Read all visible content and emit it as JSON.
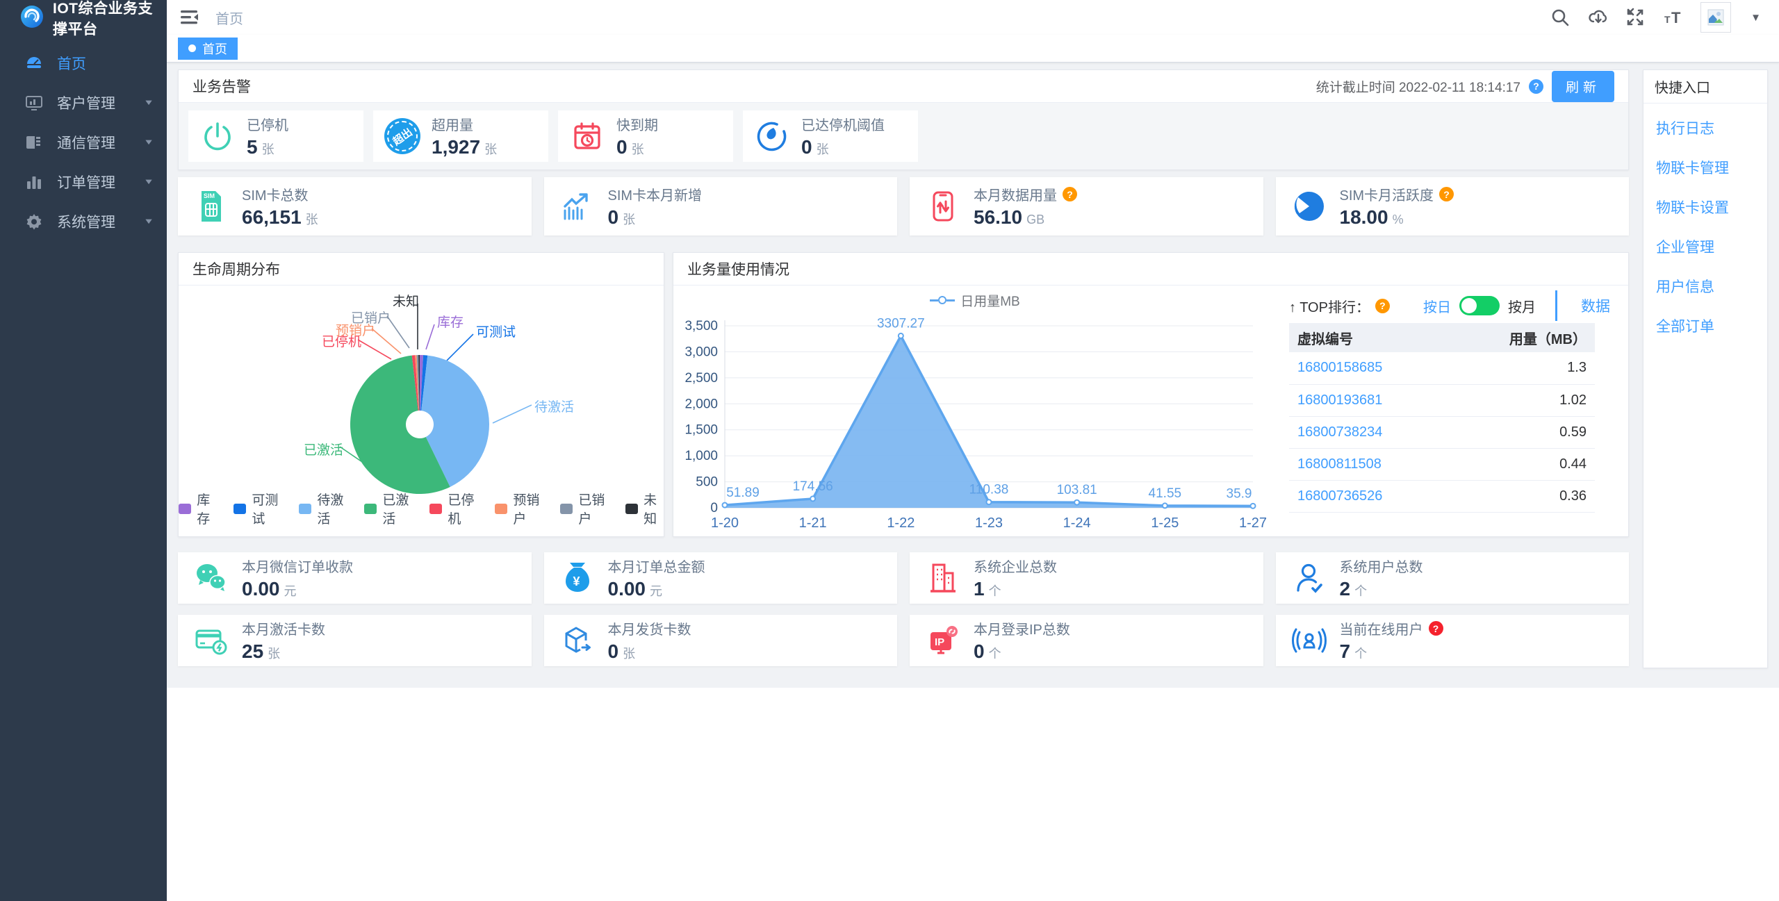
{
  "app": {
    "title": "IOT综合业务支撑平台"
  },
  "sidebar": {
    "items": [
      {
        "label": "首页"
      },
      {
        "label": "客户管理"
      },
      {
        "label": "通信管理"
      },
      {
        "label": "订单管理"
      },
      {
        "label": "系统管理"
      }
    ]
  },
  "navbar": {
    "breadcrumb": "首页"
  },
  "tab": {
    "label": "首页"
  },
  "alerts": {
    "title": "业务告警",
    "stats_time": "统计截止时间 2022-02-11 18:14:17",
    "refresh": "刷新",
    "cards": [
      {
        "label": "已停机",
        "value": "5",
        "unit": "张"
      },
      {
        "label": "超用量",
        "value": "1,927",
        "unit": "张"
      },
      {
        "label": "快到期",
        "value": "0",
        "unit": "张"
      },
      {
        "label": "已达停机阈值",
        "value": "0",
        "unit": "张"
      }
    ],
    "overuse_badge_text": "超出"
  },
  "summary": {
    "cards": [
      {
        "label": "SIM卡总数",
        "value": "66,151",
        "unit": "张"
      },
      {
        "label": "SIM卡本月新增",
        "value": "0",
        "unit": "张"
      },
      {
        "label": "本月数据用量",
        "value": "56.10",
        "unit": "GB"
      },
      {
        "label": "SIM卡月活跃度",
        "value": "18.00",
        "unit": "%"
      }
    ]
  },
  "lifecycle": {
    "title": "生命周期分布"
  },
  "usage": {
    "title": "业务量使用情况"
  },
  "rank": {
    "title": "↑ TOP排行：",
    "mode_day": "按日",
    "mode_month": "按月",
    "data_link": "数据",
    "col_id": "虚拟编号",
    "col_usage": "用量（MB）",
    "rows": [
      {
        "id": "16800158685",
        "usage": "1.3"
      },
      {
        "id": "16800193681",
        "usage": "1.02"
      },
      {
        "id": "16800738234",
        "usage": "0.59"
      },
      {
        "id": "16800811508",
        "usage": "0.44"
      },
      {
        "id": "16800736526",
        "usage": "0.36"
      }
    ]
  },
  "bottom": {
    "row1": [
      {
        "label": "本月微信订单收款",
        "value": "0.00",
        "unit": "元"
      },
      {
        "label": "本月订单总金额",
        "value": "0.00",
        "unit": "元"
      },
      {
        "label": "系统企业总数",
        "value": "1",
        "unit": "个"
      },
      {
        "label": "系统用户总数",
        "value": "2",
        "unit": "个"
      }
    ],
    "row2": [
      {
        "label": "本月激活卡数",
        "value": "25",
        "unit": "张"
      },
      {
        "label": "本月发货卡数",
        "value": "0",
        "unit": "张"
      },
      {
        "label": "本月登录IP总数",
        "value": "0",
        "unit": "个"
      },
      {
        "label": "当前在线用户",
        "value": "7",
        "unit": "个"
      }
    ]
  },
  "quick": {
    "title": "快捷入口",
    "links": [
      {
        "label": "执行日志"
      },
      {
        "label": "物联卡管理"
      },
      {
        "label": "物联卡设置"
      },
      {
        "label": "企业管理"
      },
      {
        "label": "用户信息"
      },
      {
        "label": "全部订单"
      }
    ]
  },
  "chart_data": [
    {
      "type": "pie",
      "title": "生命周期分布",
      "legend_position": "bottom",
      "donut_hole_ratio": 0.2,
      "items": [
        {
          "label": "库存",
          "value": 0.8,
          "color": "#9a6dd7"
        },
        {
          "label": "可测试",
          "value": 1.0,
          "color": "#1373e6"
        },
        {
          "label": "待激活",
          "value": 41.0,
          "color": "#77b7f3"
        },
        {
          "label": "已激活",
          "value": 55.4,
          "color": "#3cb87a"
        },
        {
          "label": "已停机",
          "value": 0.7,
          "color": "#f5485c"
        },
        {
          "label": "预销户",
          "value": 0.4,
          "color": "#f9926b"
        },
        {
          "label": "已销户",
          "value": 0.4,
          "color": "#8494a9"
        },
        {
          "label": "未知",
          "value": 0.3,
          "color": "#2d3238"
        }
      ]
    },
    {
      "type": "area",
      "series_name": "日用量MB",
      "categories": [
        "1-20",
        "1-21",
        "1-22",
        "1-23",
        "1-24",
        "1-25",
        "1-27"
      ],
      "values": [
        51.89,
        174.56,
        3307.27,
        110.38,
        103.81,
        41.55,
        35.9
      ],
      "point_labels": [
        "51.89",
        "174.56",
        "3307.27",
        "110.38",
        "103.81",
        "41.55",
        "35.9"
      ],
      "ylim": [
        0,
        3500
      ],
      "ytick_step": 500,
      "grid": true,
      "legend_position": "top",
      "line_color": "#5ea6ee",
      "fill_color": "#74b2f0"
    }
  ]
}
